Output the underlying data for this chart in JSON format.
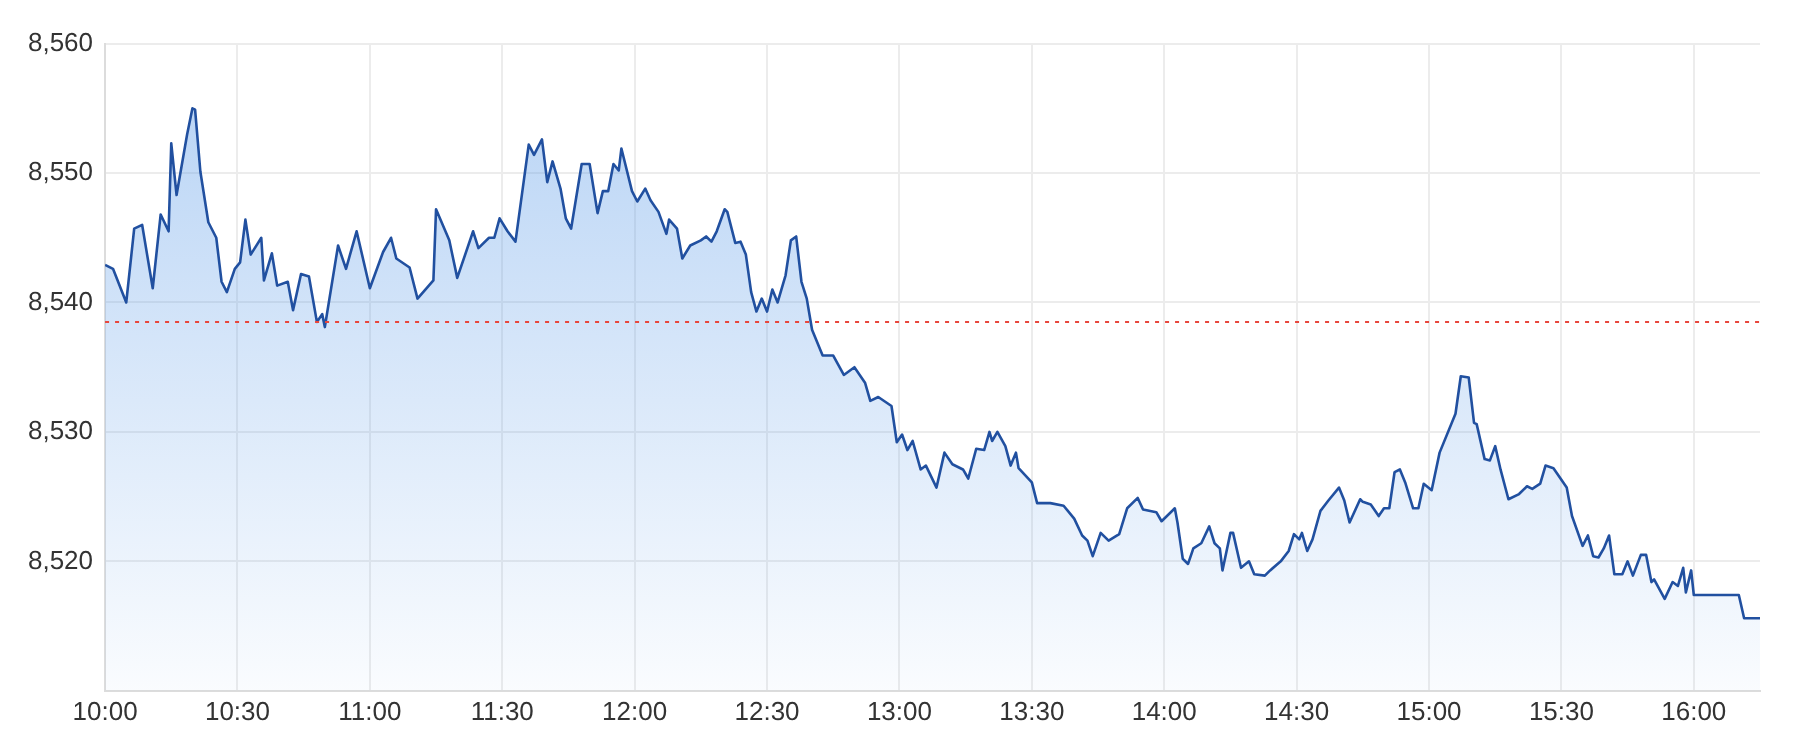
{
  "chart_data": {
    "type": "area",
    "x": [
      10.0,
      10.03,
      10.08,
      10.11,
      10.14,
      10.18,
      10.21,
      10.24,
      10.25,
      10.27,
      10.31,
      10.33,
      10.34,
      10.36,
      10.39,
      10.42,
      10.44,
      10.46,
      10.49,
      10.51,
      10.53,
      10.55,
      10.59,
      10.6,
      10.63,
      10.65,
      10.69,
      10.71,
      10.74,
      10.77,
      10.8,
      10.82,
      10.83,
      10.88,
      10.91,
      10.95,
      11.0,
      11.05,
      11.08,
      11.1,
      11.15,
      11.18,
      11.24,
      11.25,
      11.3,
      11.33,
      11.39,
      11.41,
      11.45,
      11.47,
      11.49,
      11.52,
      11.55,
      11.6,
      11.62,
      11.65,
      11.67,
      11.69,
      11.72,
      11.74,
      11.76,
      11.8,
      11.83,
      11.86,
      11.88,
      11.9,
      11.92,
      11.94,
      11.95,
      11.99,
      12.01,
      12.04,
      12.06,
      12.09,
      12.12,
      12.13,
      12.16,
      12.18,
      12.21,
      12.25,
      12.27,
      12.29,
      12.31,
      12.34,
      12.35,
      12.38,
      12.4,
      12.42,
      12.44,
      12.46,
      12.48,
      12.5,
      12.52,
      12.54,
      12.57,
      12.59,
      12.61,
      12.63,
      12.65,
      12.67,
      12.71,
      12.75,
      12.79,
      12.83,
      12.87,
      12.89,
      12.92,
      12.97,
      12.99,
      13.01,
      13.03,
      13.05,
      13.08,
      13.1,
      13.14,
      13.17,
      13.2,
      13.24,
      13.26,
      13.29,
      13.32,
      13.34,
      13.35,
      13.37,
      13.4,
      13.42,
      13.44,
      13.45,
      13.5,
      13.52,
      13.57,
      13.62,
      13.66,
      13.69,
      13.71,
      13.73,
      13.76,
      13.79,
      13.83,
      13.86,
      13.9,
      13.92,
      13.97,
      13.99,
      14.04,
      14.05,
      14.07,
      14.09,
      14.11,
      14.14,
      14.17,
      14.19,
      14.21,
      14.22,
      14.25,
      14.26,
      14.29,
      14.32,
      14.34,
      14.38,
      14.4,
      14.44,
      14.47,
      14.49,
      14.51,
      14.52,
      14.54,
      14.56,
      14.59,
      14.62,
      14.66,
      14.68,
      14.7,
      14.74,
      14.75,
      14.78,
      14.81,
      14.83,
      14.85,
      14.87,
      14.89,
      14.91,
      14.94,
      14.96,
      14.98,
      15.01,
      15.04,
      15.1,
      15.12,
      15.15,
      15.17,
      15.18,
      15.21,
      15.23,
      15.25,
      15.27,
      15.3,
      15.34,
      15.37,
      15.39,
      15.42,
      15.44,
      15.47,
      15.52,
      15.54,
      15.58,
      15.6,
      15.62,
      15.64,
      15.66,
      15.68,
      15.7,
      15.73,
      15.75,
      15.77,
      15.8,
      15.82,
      15.84,
      15.85,
      15.89,
      15.92,
      15.94,
      15.96,
      15.97,
      15.99,
      16.0,
      16.17,
      16.19,
      16.25
    ],
    "series": [
      {
        "color": "#2150a0",
        "values": [
          8542.9,
          8542.6,
          8540.0,
          8545.7,
          8546.0,
          8541.1,
          8546.8,
          8545.5,
          8552.3,
          8548.3,
          8553.0,
          8555.0,
          8554.9,
          8550.1,
          8546.2,
          8545.0,
          8541.6,
          8540.8,
          8542.6,
          8543.1,
          8546.4,
          8543.7,
          8545.0,
          8541.7,
          8543.8,
          8541.3,
          8541.6,
          8539.4,
          8542.2,
          8542.0,
          8538.5,
          8539.1,
          8538.1,
          8544.4,
          8542.6,
          8545.5,
          8541.1,
          8543.9,
          8545.0,
          8543.4,
          8542.7,
          8540.3,
          8541.7,
          8547.2,
          8544.8,
          8541.9,
          8545.5,
          8544.2,
          8545.0,
          8545.0,
          8546.5,
          8545.5,
          8544.7,
          8552.2,
          8551.4,
          8552.6,
          8549.3,
          8550.9,
          8548.8,
          8546.5,
          8545.7,
          8550.7,
          8550.7,
          8546.9,
          8548.6,
          8548.6,
          8550.7,
          8550.2,
          8551.9,
          8548.6,
          8547.8,
          8548.8,
          8547.9,
          8547.0,
          8545.3,
          8546.4,
          8545.7,
          8543.4,
          8544.4,
          8544.8,
          8545.1,
          8544.7,
          8545.5,
          8547.2,
          8547.0,
          8544.6,
          8544.7,
          8543.7,
          8540.8,
          8539.3,
          8540.3,
          8539.3,
          8541.0,
          8540.0,
          8542.1,
          8544.8,
          8545.1,
          8541.6,
          8540.3,
          8537.9,
          8535.9,
          8535.9,
          8534.4,
          8535.0,
          8533.8,
          8532.4,
          8532.7,
          8532.0,
          8529.2,
          8529.8,
          8528.6,
          8529.3,
          8527.1,
          8527.4,
          8525.7,
          8528.4,
          8527.5,
          8527.1,
          8526.4,
          8528.7,
          8528.6,
          8530.0,
          8529.3,
          8530.0,
          8528.9,
          8527.4,
          8528.4,
          8527.2,
          8526.1,
          8524.5,
          8524.5,
          8524.3,
          8523.3,
          8522.0,
          8521.6,
          8520.4,
          8522.2,
          8521.6,
          8522.1,
          8524.1,
          8524.9,
          8524.0,
          8523.8,
          8523.1,
          8524.1,
          8523.0,
          8520.2,
          8519.8,
          8521.0,
          8521.4,
          8522.7,
          8521.4,
          8521.0,
          8519.3,
          8522.2,
          8522.2,
          8519.5,
          8520.0,
          8519.0,
          8518.9,
          8519.3,
          8520.0,
          8520.8,
          8522.1,
          8521.7,
          8522.2,
          8520.8,
          8521.7,
          8523.9,
          8524.7,
          8525.7,
          8524.7,
          8523.0,
          8524.8,
          8524.6,
          8524.4,
          8523.5,
          8524.1,
          8524.1,
          8526.9,
          8527.1,
          8526.1,
          8524.1,
          8524.1,
          8526.0,
          8525.5,
          8528.4,
          8531.4,
          8534.3,
          8534.2,
          8530.7,
          8530.6,
          8527.9,
          8527.8,
          8528.9,
          8527.1,
          8524.8,
          8525.2,
          8525.8,
          8525.6,
          8526.0,
          8527.4,
          8527.2,
          8525.7,
          8523.5,
          8521.2,
          8522.0,
          8520.4,
          8520.3,
          8521.0,
          8522.0,
          8519.0,
          8519.0,
          8520.0,
          8518.9,
          8520.5,
          8520.5,
          8518.4,
          8518.6,
          8517.1,
          8518.4,
          8518.1,
          8519.5,
          8517.6,
          8519.3,
          8517.4,
          8517.4,
          8515.6,
          8515.6
        ]
      }
    ],
    "xlim": [
      10,
      16.25
    ],
    "xticks": [
      {
        "value": 10,
        "label": "10:00"
      },
      {
        "value": 10.5,
        "label": "10:30"
      },
      {
        "value": 11,
        "label": "11:00"
      },
      {
        "value": 11.5,
        "label": "11:30"
      },
      {
        "value": 12,
        "label": "12:00"
      },
      {
        "value": 12.5,
        "label": "12:30"
      },
      {
        "value": 13,
        "label": "13:00"
      },
      {
        "value": 13.5,
        "label": "13:30"
      },
      {
        "value": 14,
        "label": "14:00"
      },
      {
        "value": 14.5,
        "label": "14:30"
      },
      {
        "value": 15,
        "label": "15:00"
      },
      {
        "value": 15.5,
        "label": "15:30"
      },
      {
        "value": 16,
        "label": "16:00"
      }
    ],
    "ylim": [
      8510,
      8560
    ],
    "yticks": [
      {
        "value": 8520,
        "label": "8,520"
      },
      {
        "value": 8530,
        "label": "8,530"
      },
      {
        "value": 8540,
        "label": "8,540"
      },
      {
        "value": 8550,
        "label": "8,550"
      },
      {
        "value": 8560,
        "label": "8,560"
      }
    ],
    "ref_lines": [
      {
        "axis": "y",
        "value": 8538.5,
        "label": null,
        "color": "#e8473c",
        "line_style": "dotted"
      }
    ],
    "grid": true,
    "legend": false,
    "marker": "none",
    "line_style": "solid"
  }
}
